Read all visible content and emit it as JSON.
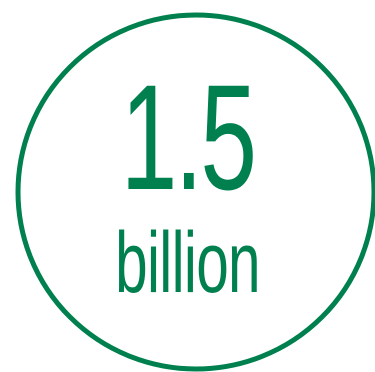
{
  "stat": {
    "value": "1.5",
    "unit": "billion"
  },
  "colors": {
    "accent": "#00804F",
    "background": "#FFFFFF"
  }
}
